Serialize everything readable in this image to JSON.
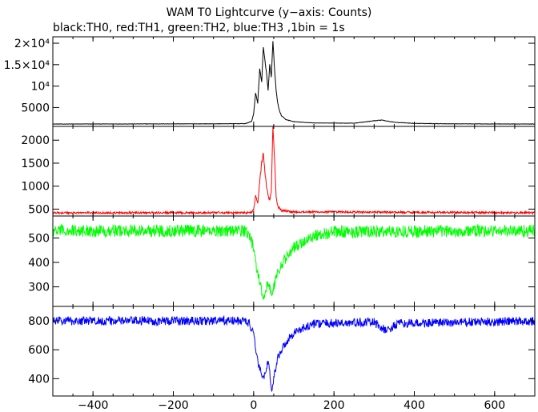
{
  "title": "WAM T0 Lightcurve (y−axis: Counts)",
  "subtitle": "black:TH0, red:TH1, green:TH2, blue:TH3 ,1bin = 1s",
  "chart_data": {
    "type": "line",
    "title": "WAM T0 Lightcurve (y−axis: Counts)",
    "subtitle": "black:TH0, red:TH1, green:TH2, blue:TH3 ,1bin = 1s",
    "xlim": [
      -500,
      700
    ],
    "x_ticks": [
      -400,
      -200,
      0,
      200,
      400,
      600
    ],
    "x_tick_labels": [
      "−400",
      "−200",
      "0",
      "200",
      "400",
      "600"
    ],
    "panels": [
      {
        "color": "#000000",
        "ylim": [
          600,
          21500
        ],
        "y_ticks": [
          5000,
          10000,
          15000,
          20000
        ],
        "y_tick_labels": [
          "5000",
          "10⁴",
          "1.5×10⁴",
          "2×10⁴"
        ],
        "series": [
          {
            "x": [
              -500,
              -100,
              -20,
              -5,
              0,
              5,
              10,
              15,
              20,
              24,
              28,
              32,
              36,
              40,
              44,
              48,
              52,
              56,
              60,
              65,
              70,
              80,
              100,
              150,
              250,
              300,
              320,
              340,
              360,
              400,
              500,
              700
            ],
            "y": [
              1150,
              1200,
              1250,
              1800,
              3500,
              8500,
              6000,
              14000,
              11000,
              19000,
              16000,
              13000,
              9000,
              15000,
              12000,
              20500,
              14000,
              9000,
              6000,
              4000,
              3000,
              2200,
              1700,
              1400,
              1350,
              1900,
              2100,
              1700,
              1500,
              1300,
              1200,
              1150
            ]
          }
        ]
      },
      {
        "color": "#ff0000",
        "ylim": [
          350,
          2300
        ],
        "y_ticks": [
          500,
          1000,
          1500,
          2000
        ],
        "y_tick_labels": [
          "500",
          "1000",
          "1500",
          "2000"
        ],
        "series": [
          {
            "x": [
              -500,
              -20,
              -5,
              0,
              5,
              10,
              15,
              20,
              24,
              28,
              32,
              36,
              40,
              44,
              48,
              52,
              56,
              60,
              70,
              100,
              700
            ],
            "y": [
              420,
              420,
              430,
              500,
              800,
              620,
              1100,
              1500,
              1750,
              1300,
              1000,
              800,
              700,
              900,
              2350,
              1600,
              800,
              560,
              470,
              440,
              420
            ]
          }
        ]
      },
      {
        "color": "#00ff00",
        "ylim": [
          220,
          590
        ],
        "y_ticks": [
          300,
          400,
          500
        ],
        "y_tick_labels": [
          "300",
          "400",
          "500"
        ],
        "series": [
          {
            "x": [
              -500,
              -20,
              -10,
              0,
              5,
              10,
              15,
              20,
              25,
              30,
              35,
              40,
              45,
              50,
              60,
              80,
              100,
              150,
              200,
              700
            ],
            "y": [
              530,
              530,
              510,
              460,
              400,
              360,
              320,
              280,
              250,
              270,
              330,
              300,
              260,
              300,
              360,
              420,
              460,
              510,
              525,
              530
            ]
          }
        ]
      },
      {
        "color": "#0000ff",
        "ylim": [
          280,
          900
        ],
        "y_ticks": [
          400,
          600,
          800
        ],
        "y_tick_labels": [
          "400",
          "600",
          "800"
        ],
        "series": [
          {
            "x": [
              -500,
              -20,
              -10,
              0,
              5,
              10,
              15,
              20,
              25,
              30,
              35,
              40,
              45,
              50,
              60,
              80,
              100,
              150,
              300,
              330,
              360,
              700
            ],
            "y": [
              800,
              800,
              780,
              700,
              600,
              520,
              470,
              430,
              400,
              460,
              520,
              450,
              300,
              400,
              550,
              650,
              720,
              780,
              790,
              730,
              780,
              800
            ]
          }
        ]
      }
    ]
  }
}
